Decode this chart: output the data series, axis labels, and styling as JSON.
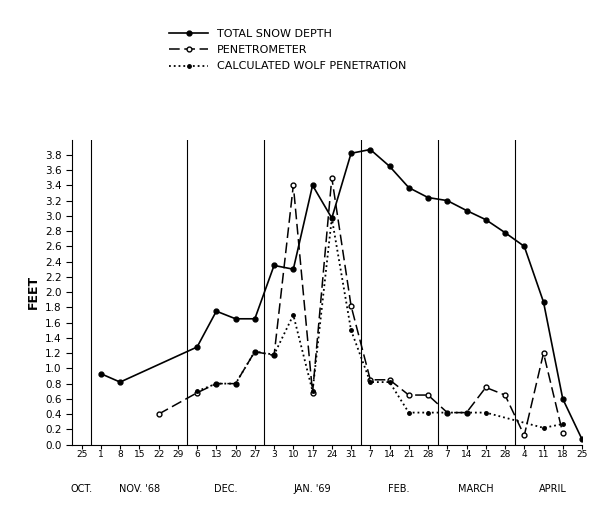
{
  "ylabel": "FEET",
  "x_tick_labels": [
    "25",
    "1",
    "8",
    "15",
    "22",
    "29",
    "6",
    "13",
    "20",
    "27",
    "3",
    "10",
    "17",
    "24",
    "31",
    "7",
    "14",
    "21",
    "28",
    "7",
    "14",
    "21",
    "28",
    "4",
    "11",
    "18",
    "25"
  ],
  "month_label_names": [
    "OCT.",
    "NOV. '68",
    "DEC.",
    "JAN. '69",
    "FEB.",
    "MARCH",
    "APRIL"
  ],
  "month_ranges": [
    [
      0,
      0
    ],
    [
      1,
      5
    ],
    [
      6,
      9
    ],
    [
      10,
      14
    ],
    [
      15,
      18
    ],
    [
      19,
      22
    ],
    [
      23,
      26
    ]
  ],
  "month_divider_positions": [
    0.5,
    5.5,
    9.5,
    14.5,
    18.5,
    22.5
  ],
  "snow_depth_x": [
    1,
    2,
    6,
    7,
    8,
    9,
    10,
    11,
    12,
    13,
    14,
    15,
    16,
    17,
    18,
    19,
    20,
    21,
    22,
    23,
    24,
    25,
    26
  ],
  "snow_depth_y": [
    0.93,
    0.82,
    1.28,
    1.75,
    1.65,
    1.65,
    2.35,
    2.3,
    3.4,
    2.97,
    3.82,
    3.87,
    3.65,
    3.37,
    3.24,
    3.2,
    3.07,
    2.95,
    2.78,
    2.6,
    1.87,
    0.6,
    0.07
  ],
  "penetrometer_x": [
    4,
    6,
    7,
    8,
    9,
    10,
    11,
    12,
    13,
    14,
    15,
    16,
    17,
    18,
    19,
    20,
    21,
    22,
    23,
    24,
    25
  ],
  "penetrometer_y": [
    0.4,
    0.68,
    0.8,
    0.8,
    1.22,
    1.17,
    3.4,
    0.68,
    3.5,
    1.82,
    0.85,
    0.85,
    0.65,
    0.65,
    0.42,
    0.42,
    0.75,
    0.65,
    0.12,
    1.2,
    0.15
  ],
  "wolf_pen_x": [
    6,
    7,
    8,
    9,
    10,
    11,
    12,
    13,
    14,
    15,
    16,
    17,
    18,
    19,
    20,
    21,
    24,
    25
  ],
  "wolf_pen_y": [
    0.7,
    0.8,
    0.8,
    1.22,
    1.18,
    1.7,
    0.7,
    2.97,
    1.5,
    0.82,
    0.82,
    0.42,
    0.42,
    0.42,
    0.42,
    0.42,
    0.22,
    0.27
  ],
  "ylim": [
    0,
    4.0
  ],
  "yticks": [
    0,
    0.2,
    0.4,
    0.6,
    0.8,
    1.0,
    1.2,
    1.4,
    1.6,
    1.8,
    2.0,
    2.2,
    2.4,
    2.6,
    2.8,
    3.0,
    3.2,
    3.4,
    3.6,
    3.8
  ],
  "background_color": "#ffffff"
}
